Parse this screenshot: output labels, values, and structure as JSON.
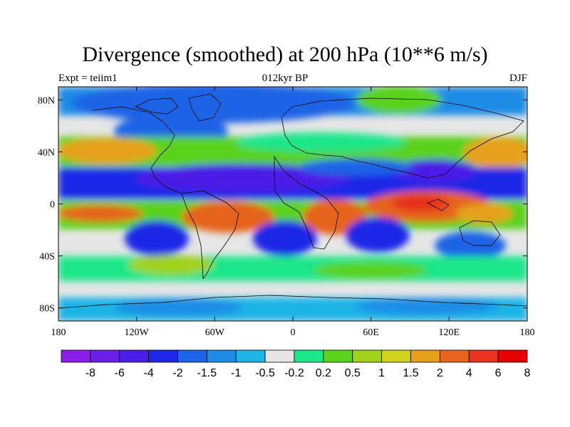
{
  "title": "Divergence (smoothed) at 200 hPa (10**6 m/s)",
  "left_label": "Expt = teiim1",
  "center_label": "012kyr BP",
  "right_label": "DJF",
  "map": {
    "projection": "cylindrical equidistant",
    "lon_range": [
      -180,
      180
    ],
    "lat_range": [
      -90,
      90
    ],
    "x_ticks": [
      {
        "lon": -180,
        "label": "180"
      },
      {
        "lon": -120,
        "label": "120W"
      },
      {
        "lon": -60,
        "label": "60W"
      },
      {
        "lon": 0,
        "label": "0"
      },
      {
        "lon": 60,
        "label": "60E"
      },
      {
        "lon": 120,
        "label": "120E"
      },
      {
        "lon": 180,
        "label": "180"
      }
    ],
    "y_ticks": [
      {
        "lat": 80,
        "label": "80N"
      },
      {
        "lat": 40,
        "label": "40N"
      },
      {
        "lat": 0,
        "label": "0"
      },
      {
        "lat": -40,
        "label": "40S"
      },
      {
        "lat": -80,
        "label": "80S"
      }
    ]
  },
  "colorbar": {
    "colors": [
      "#8a1ee6",
      "#6a1ee6",
      "#4b1ee6",
      "#1e28e6",
      "#1e64e6",
      "#1e8ce6",
      "#1eb4e6",
      "#e6e6e6",
      "#1ee68a",
      "#5ad21e",
      "#a0d21e",
      "#d2d21e",
      "#e6a01e",
      "#e6641e",
      "#e6321e",
      "#e60000"
    ],
    "labels": [
      "-8",
      "-6",
      "-4",
      "-2",
      "-1.5",
      "-1",
      "-0.5",
      "-0.2",
      "0.2",
      "0.5",
      "1",
      "1.5",
      "2",
      "4",
      "6",
      "8"
    ]
  }
}
